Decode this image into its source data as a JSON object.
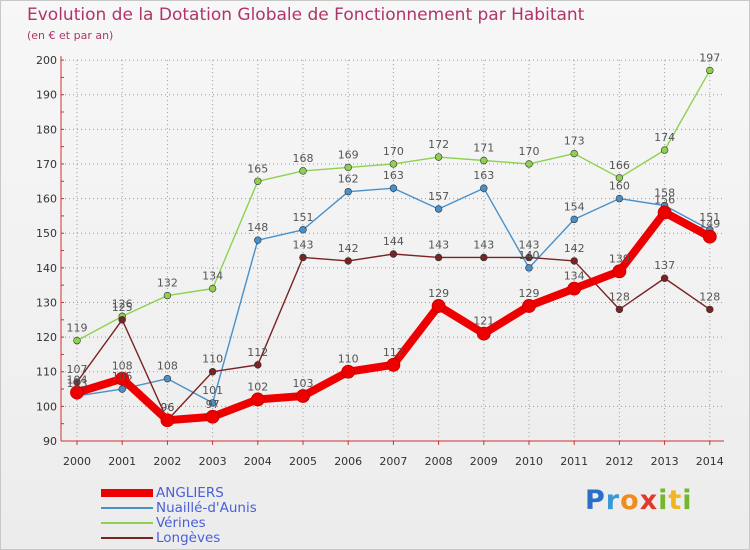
{
  "title": "Evolution de la Dotation Globale de Fonctionnement par Habitant",
  "subtitle": "(en € et par an)",
  "logo": {
    "text": "Proxiti",
    "letters": [
      {
        "ch": "P",
        "color": "#2c6fc7"
      },
      {
        "ch": "r",
        "color": "#3a98d8"
      },
      {
        "ch": "o",
        "color": "#f08c1e"
      },
      {
        "ch": "x",
        "color": "#e03a2a"
      },
      {
        "ch": "i",
        "color": "#74b72e"
      },
      {
        "ch": "t",
        "color": "#f2b51f"
      },
      {
        "ch": "i",
        "color": "#74b72e"
      }
    ]
  },
  "chart_data": {
    "type": "line",
    "title": "Evolution de la Dotation Globale de Fonctionnement par Habitant",
    "subtitle": "(en € et par an)",
    "x": [
      2000,
      2001,
      2002,
      2003,
      2004,
      2005,
      2006,
      2007,
      2008,
      2009,
      2010,
      2011,
      2012,
      2013,
      2014
    ],
    "xlabel": "",
    "ylabel": "",
    "ylim": [
      90,
      200
    ],
    "yticks": [
      90,
      100,
      110,
      120,
      130,
      140,
      150,
      160,
      170,
      180,
      190,
      200
    ],
    "grid": true,
    "legend": "bottom-left",
    "series": [
      {
        "name": "Vérines",
        "color": "#8fd14f",
        "values": [
          119,
          126,
          132,
          134,
          165,
          168,
          169,
          170,
          172,
          171,
          170,
          173,
          166,
          174,
          197
        ],
        "labels": [
          "119",
          "126",
          "132",
          "134",
          "165",
          "168",
          "169",
          "170",
          "172",
          "171",
          "170",
          "173",
          "166",
          "174",
          "197"
        ]
      },
      {
        "name": "Nuaillé-d'Aunis",
        "color": "#4a90c8",
        "values": [
          103,
          105,
          108,
          101,
          148,
          151,
          162,
          163,
          157,
          163,
          140,
          154,
          160,
          158,
          151
        ],
        "labels": [
          "103",
          "105",
          "108",
          "101",
          "148",
          "151",
          "162",
          "163",
          "157",
          "163",
          "140",
          "154",
          "160",
          "158",
          "151"
        ]
      },
      {
        "name": "Longèves",
        "color": "#7a2323",
        "values": [
          107,
          125,
          96,
          110,
          112,
          143,
          142,
          144,
          143,
          143,
          143,
          142,
          128,
          137,
          128
        ],
        "labels": [
          "107",
          "125",
          "96",
          "110",
          "112",
          "143",
          "142",
          "144",
          "143",
          "143",
          "143",
          "142",
          "128",
          "137",
          "128"
        ]
      },
      {
        "name": "ANGLIERS",
        "color": "#ee0000",
        "values": [
          104,
          108,
          96,
          97,
          102,
          103,
          110,
          112,
          129,
          121,
          129,
          134,
          139,
          156,
          149
        ],
        "labels": [
          "104",
          "108",
          "96",
          "97",
          "102",
          "103",
          "110",
          "112",
          "129",
          "121",
          "129",
          "134",
          "139",
          "156",
          "149"
        ]
      }
    ],
    "legend_order": [
      "ANGLIERS",
      "Nuaillé-d'Aunis",
      "Vérines",
      "Longèves"
    ]
  }
}
